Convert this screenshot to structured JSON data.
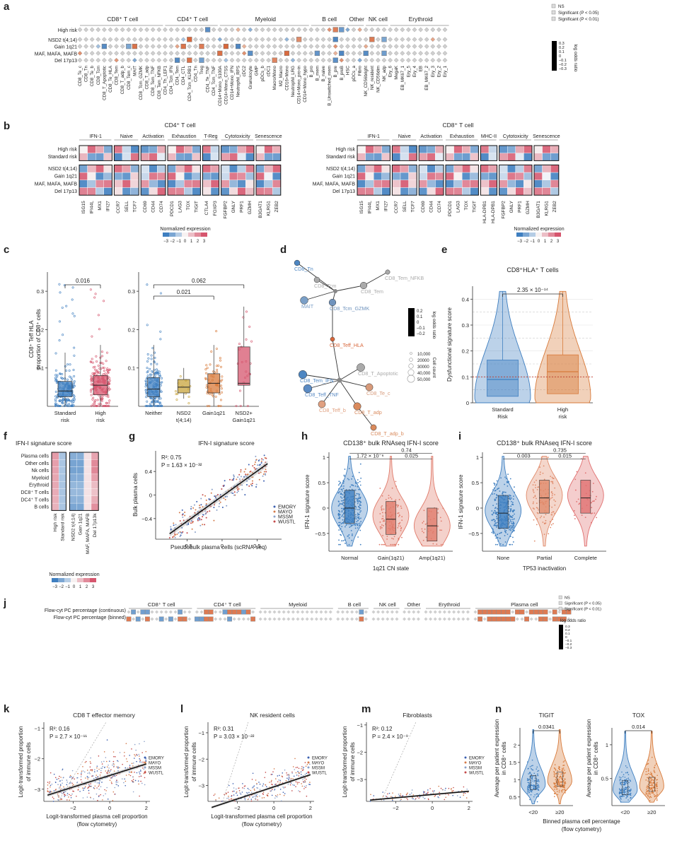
{
  "palette": {
    "pos": "#d8663a",
    "neg": "#4d86c2",
    "neutral": "#cfcfcf",
    "red": "#d6566e",
    "blue": "#3f7fc0",
    "gold": "#c8a43c",
    "orange": "#d87a3a",
    "grey": "#999999"
  },
  "panel_labels": [
    "a",
    "b",
    "c",
    "d",
    "e",
    "f",
    "g",
    "h",
    "i",
    "j",
    "k",
    "l",
    "m",
    "n"
  ],
  "chart_data": [
    {
      "id": "a",
      "type": "heatmap",
      "rows": [
        "High risk",
        "NSD2 t(4;14)",
        "Gain 1q21",
        "MAF, MAFA, MAFB",
        "Del 17p13"
      ],
      "groups": [
        {
          "name": "CD8⁺ T cell",
          "cols": [
            "CD8_Te_c",
            "CD8_Tn",
            "CD8_Te_b",
            "CD8_Tcm",
            "CD8_T_Apoptotic",
            "CD8_Te_HLA",
            "CD8_Tem",
            "CD8_T_adp_b",
            "CD8_Tem_c",
            "MAIT",
            "CD8_Tcm_GZMK",
            "CD8_T_adp",
            "CD8_Tem_TNF",
            "CD8_Tem_NFKB"
          ]
        },
        {
          "name": "CD4⁺ T cell",
          "cols": [
            "CD4_Th_LEF1",
            "CD4_Tcm_IFN",
            "CD4_Tem",
            "CD4_CTL",
            "CD4_Tcm_KLRB1",
            "CD4_Tn",
            "Treg",
            "CD4_Te_TNF",
            "CD4_Tcm_TNF"
          ]
        },
        {
          "name": "Myeloid",
          "cols": [
            "CD14+Mono_S100A",
            "CD14+Mono_CTSS",
            "CD14+Mono_IFN",
            "Neutrophil_RPS",
            "cDC2",
            "Granulocyte",
            "GMP",
            "pDCs_b",
            "cDC1",
            "Macro/Mono",
            "M2_Macro",
            "CD16+Mono",
            "Neutrophil_LRG",
            "CD14+Mono_pro-in",
            "CD14+Mono_hypo"
          ]
        },
        {
          "name": "B cell",
          "cols": [
            "B_pro",
            "B_mem",
            "B_naive",
            "B_Unswitched_mem",
            "B_pre",
            "B_preB"
          ]
        },
        {
          "name": "Other",
          "cols": [
            "HSC",
            "pDCs_a",
            "Fibro"
          ]
        },
        {
          "name": "NK cell",
          "cols": [
            "NK_CD56bright",
            "NK_resident",
            "NK_CD56dim",
            "NK_adp"
          ]
        },
        {
          "name": "Erythroid",
          "cols": [
            "Ery_6",
            "MegaK",
            "EB_MK67_1",
            "Ery_5",
            "Ery_4",
            "EB",
            "EB_MK67_2",
            "Ery_3",
            "Ery_2",
            "Ery_1"
          ]
        }
      ],
      "legend": {
        "sig": [
          "NS",
          "Significant (P < 0.05)",
          "Significant (P < 0.01)"
        ],
        "color_title": "log odds ratio",
        "ticks": [
          "0.3",
          "0.2",
          "0.1",
          "0",
          "–0.1",
          "–0.2",
          "–0.3"
        ]
      }
    },
    {
      "id": "b1",
      "type": "heatmap",
      "title": "CD4⁺ T cell",
      "rows": [
        "High risk",
        "Standard risk",
        "NSD2 t(4;14)",
        "Gain 1q21",
        "MAF, MAFA, MAFB",
        "Del 17p13"
      ],
      "groups": [
        {
          "name": "IFN-1",
          "genes": [
            "ISG15",
            "IFI44L",
            "MX1",
            "IFI27"
          ]
        },
        {
          "name": "Naive",
          "genes": [
            "CCR7",
            "SELL",
            "TCF7"
          ]
        },
        {
          "name": "Activation",
          "genes": [
            "CD69",
            "CD44",
            "CD74"
          ]
        },
        {
          "name": "Exhaustion",
          "genes": [
            "PDCD1",
            "LAG3",
            "TOX",
            "TIGIT"
          ]
        },
        {
          "name": "T-Reg",
          "genes": [
            "CTLA4",
            "FOXP3"
          ]
        },
        {
          "name": "Cytotoxicity",
          "genes": [
            "FGFBP2",
            "GNLY",
            "PRF1",
            "GZMH"
          ]
        },
        {
          "name": "Senescence",
          "genes": [
            "B3GAT1",
            "KLRG1",
            "ZEB2"
          ]
        }
      ]
    },
    {
      "id": "b2",
      "type": "heatmap",
      "title": "CD8⁺ T cell",
      "rows": [
        "High risk",
        "Standard risk",
        "NSD2 t(4;14)",
        "Gain 1q21",
        "MAF, MAFA, MAFB",
        "Del 17p13"
      ],
      "groups": [
        {
          "name": "IFN-1",
          "genes": [
            "ISG15",
            "IFI44L",
            "MX1",
            "IFI27"
          ]
        },
        {
          "name": "Naive",
          "genes": [
            "CCR7",
            "SELL",
            "TCF7"
          ]
        },
        {
          "name": "Activation",
          "genes": [
            "CD69",
            "CD44",
            "CD74"
          ]
        },
        {
          "name": "Exhaustion",
          "genes": [
            "PDCD1",
            "LAG3",
            "TOX",
            "TIGIT"
          ]
        },
        {
          "name": "MHC-II",
          "genes": [
            "HLA-DPB1",
            "HLA-DPB1"
          ]
        },
        {
          "name": "Cytotoxicity",
          "genes": [
            "FGFBP2",
            "GNLY",
            "PRF1",
            "GZMH"
          ]
        },
        {
          "name": "Senescence",
          "genes": [
            "B3GAT1",
            "KLRG1",
            "ZEB2"
          ]
        }
      ],
      "legend_title": "Normalized expression",
      "legend_ticks": [
        "−3",
        "−2",
        "−1",
        "0",
        "1",
        "2",
        "3"
      ]
    },
    {
      "id": "c1",
      "type": "box",
      "ylabel": "CD8⁺ Teff HLA proportion of CD8⁺ cells",
      "categories": [
        "Standard risk",
        "High risk"
      ],
      "stats": [
        [
          0.0,
          0.025,
          0.04,
          0.065,
          0.14,
          0.32
        ],
        [
          0.0,
          0.03,
          0.055,
          0.08,
          0.16,
          0.34
        ]
      ],
      "yticks": [
        0.1,
        0.2,
        0.3
      ],
      "ylim": [
        0,
        0.35
      ],
      "pvalues": [
        {
          "label": "0.016",
          "between": [
            0,
            1
          ]
        }
      ]
    },
    {
      "id": "c2",
      "type": "box",
      "categories": [
        "Neither",
        "NSD2 t(4;14)",
        "Gain1q21",
        "NSD2+ Gain1q21"
      ],
      "stats": [
        [
          0.0,
          0.025,
          0.045,
          0.075,
          0.16,
          0.34
        ],
        [
          0.02,
          0.035,
          0.05,
          0.07,
          0.1,
          0.14
        ],
        [
          0.0,
          0.035,
          0.06,
          0.085,
          0.16,
          0.21
        ],
        [
          0.0,
          0.055,
          0.06,
          0.155,
          0.26,
          0.29
        ]
      ],
      "yticks": [
        0.1,
        0.2,
        0.3
      ],
      "ylim": [
        0,
        0.35
      ],
      "pvalues": [
        {
          "label": "0.021",
          "between": [
            0,
            2
          ]
        },
        {
          "label": "0.062",
          "between": [
            0,
            3
          ]
        }
      ]
    },
    {
      "id": "d",
      "type": "network",
      "nodes": [
        "CD8_Tn",
        "CD8_Tcm",
        "MAIT",
        "CD8_Tcm_GZMK",
        "CD8_Tem_NFKB",
        "CD8_Tem",
        "CD8_Teff_HLA",
        "CD8_T_Apoptotic",
        "CD8_Tem_IFN",
        "CD8_Teff_TNF",
        "CD8_Te_c",
        "CD8_Teff_b",
        "CD8_T_adp",
        "CD8_T_adp_b"
      ],
      "legend": {
        "color_title": "log odds ratio",
        "color_ticks": [
          "0.2",
          "0.1",
          "0",
          "–0.1",
          "–0.2"
        ],
        "size_title": "Cell count",
        "size_ticks": [
          "10,000",
          "20000",
          "30000",
          "40,000",
          "50,000"
        ]
      }
    },
    {
      "id": "e",
      "type": "violin",
      "title": "CD8⁺HLA⁺ T cells",
      "ylabel": "Dysfunctional signature score",
      "categories": [
        "Standard Risk",
        "High risk"
      ],
      "yticks": [
        0,
        0.1,
        0.2,
        0.3,
        0.4
      ],
      "ylim": [
        0,
        0.45
      ],
      "medians": [
        0.09,
        0.12
      ],
      "q1": [
        0.025,
        0.035
      ],
      "q3": [
        0.165,
        0.185
      ],
      "pvalue": "2.35 × 10⁻¹⁴"
    },
    {
      "id": "f",
      "type": "heatmap",
      "title": "IFN-I signature score",
      "rows": [
        "Plasma cells",
        "Other cells",
        "Nk cells",
        "Myeloid",
        "Erythroid",
        "DC8⁺ T cells",
        "DC4⁺ T cells",
        "B cells"
      ],
      "cols": [
        "High risk",
        "Standard risk",
        "NSD2 t(4;14)",
        "Gain 1q21",
        "MAF, MAFA, MAFB",
        "Del 17p13k"
      ],
      "legend_title": "Normalized expression",
      "legend_ticks": [
        "−3",
        "−2",
        "−1",
        "0",
        "1",
        "2",
        "3"
      ]
    },
    {
      "id": "g",
      "type": "scatter",
      "title": "IFN-I signature score",
      "xlabel": "Pseudobulk plasma cells (scRNA-seq)",
      "ylabel": "Bulk plasma cells",
      "xticks": [
        -0.5,
        0,
        0.5
      ],
      "yticks": [
        -0.4,
        0,
        0.4
      ],
      "annot": [
        "R²: 0.75",
        "P = 1.63 × 10⁻³²"
      ],
      "series": [
        "EMORY",
        "MAYO",
        "MSSM",
        "WUSTL"
      ]
    },
    {
      "id": "h",
      "type": "violin",
      "title": "CD138⁺ bulk RNAseq IFN-I score",
      "ylabel": "IFN-1 signature score",
      "xlabel": "1q21 CN state",
      "categories": [
        "Normal",
        "Gain(1q21)",
        "Amp(1q21)"
      ],
      "yticks": [
        -0.5,
        0,
        0.5,
        1.0
      ],
      "medians": [
        0.0,
        -0.22,
        -0.35
      ],
      "pvalues": [
        "1.72 × 10⁻⁶",
        "0.025",
        "0.74"
      ]
    },
    {
      "id": "i",
      "type": "violin",
      "title": "CD138⁺ bulk RNAseq IFN-I score",
      "ylabel": "IFN-1 signature score",
      "xlabel": "TP53 inactivation",
      "categories": [
        "None",
        "Partial",
        "Complete"
      ],
      "yticks": [
        -0.5,
        0,
        0.5,
        1.0
      ],
      "medians": [
        -0.1,
        0.2,
        0.2
      ],
      "pvalues": [
        "0.003",
        "0.015",
        "0.735"
      ]
    },
    {
      "id": "j",
      "type": "heatmap",
      "rows": [
        "Flow-cyt PC percentage (continuous)",
        "Flow-cyt PC percentage (binned)"
      ],
      "groups": [
        "CD8⁺ T cell",
        "CD4⁺ T cell",
        "Myeloid",
        "B cell",
        "NK cell",
        "Other",
        "Erythroid",
        "Plasma cell"
      ],
      "legend": {
        "sig": [
          "NS",
          "Significant (P < 0.05)",
          "Significant (P < 0.01)"
        ],
        "color_title": "log odds ratio",
        "ticks": [
          "0.3",
          "0.2",
          "0.1",
          "0",
          "–0.1",
          "–0.2",
          "–0.3"
        ]
      }
    },
    {
      "id": "k",
      "type": "scatter",
      "title": "CD8 T effector memory",
      "annot": [
        "R²: 0.16",
        "P = 2.7 × 10⁻¹¹"
      ],
      "xticks": [
        -2,
        0,
        2
      ],
      "yticks": [
        -3,
        -2,
        -1
      ],
      "series": [
        "EMORY",
        "MAYO",
        "MSSM",
        "WUSTL"
      ],
      "xlabel": "Logit-transformed plasma cell proportion (flow cytometry)",
      "ylabel": "Logit-transformed proportion of immune cells"
    },
    {
      "id": "l",
      "type": "scatter",
      "title": "NK resident cells",
      "annot": [
        "R²: 0.31",
        "P = 3.03 × 10⁻²²"
      ],
      "xticks": [
        -2,
        0,
        2
      ],
      "yticks": [
        -3,
        -2,
        -1
      ],
      "series": [
        "EMORY",
        "MAYO",
        "MSSM",
        "WUSTL"
      ],
      "xlabel": "Logit-transformed plasma cell proportion (flow cytometry)",
      "ylabel": "Logit-transformed proportion of immune cells"
    },
    {
      "id": "m",
      "type": "scatter",
      "title": "Fibroblasts",
      "annot": [
        "R²: 0.12",
        "P = 2.4 × 10⁻⁹"
      ],
      "xticks": [
        -2,
        0,
        2
      ],
      "yticks": [
        -3,
        -2,
        -1
      ],
      "series": [
        "EMORY",
        "MAYO",
        "MSSM",
        "WUSTL"
      ],
      "ylabel": "Logit-transformed proportion of immune cells"
    },
    {
      "id": "n1",
      "type": "violin",
      "title": "TIGIT",
      "categories": [
        "<20",
        "≥20"
      ],
      "pvalue": "0.0341",
      "ylabel": "Average per patient expression in CD8⁺ cells",
      "yticks": [
        0.5,
        1.0,
        1.5,
        2.0
      ]
    },
    {
      "id": "n2",
      "type": "violin",
      "title": "TOX",
      "categories": [
        "<20",
        "≥20"
      ],
      "pvalue": "0.014",
      "ylabel": "Average per patient expression in CD8⁺ cells",
      "yticks": [
        0.5,
        1.0
      ],
      "xlabel": "Binned plasma cell percentage (flow cytometry)"
    }
  ]
}
